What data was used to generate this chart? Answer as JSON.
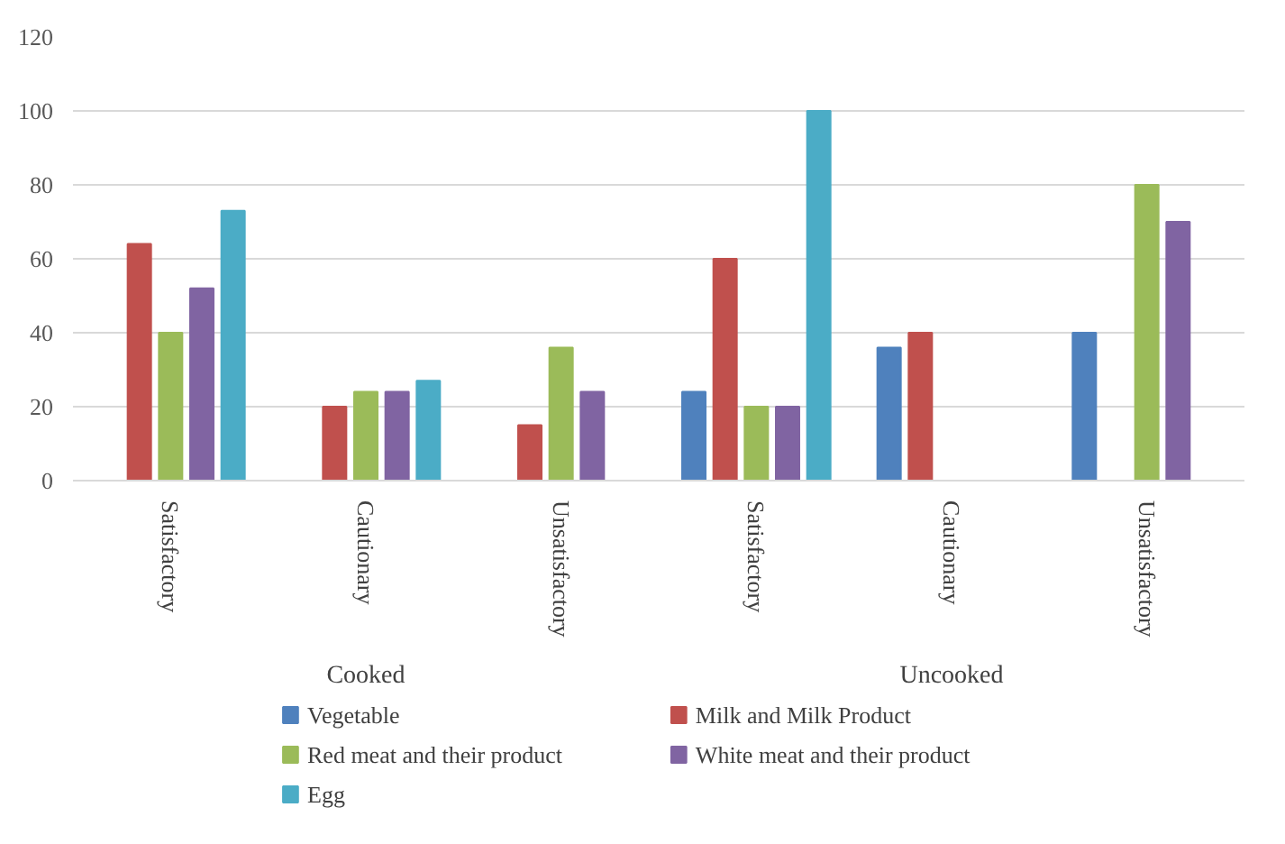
{
  "chart_data": {
    "type": "bar",
    "categories": [
      "Satisfactory",
      "Cautionary",
      "Unsatisfactory",
      "Satisfactory",
      "Cautionary",
      "Unsatisfactory"
    ],
    "annotations": [
      "Cooked",
      "Uncooked"
    ],
    "series": [
      {
        "name": "Vegetable",
        "color": "#4f81bd",
        "values": [
          null,
          null,
          null,
          24,
          36,
          40
        ]
      },
      {
        "name": "Milk and Milk Product",
        "color": "#c0504d",
        "values": [
          64,
          20,
          15,
          60,
          40,
          null
        ]
      },
      {
        "name": "Red meat and their product",
        "color": "#9bbb59",
        "values": [
          40,
          24,
          36,
          20,
          null,
          80
        ]
      },
      {
        "name": "White meat and their product",
        "color": "#8064a2",
        "values": [
          52,
          24,
          24,
          20,
          null,
          70
        ]
      },
      {
        "name": "Egg",
        "color": "#4bacc6",
        "values": [
          73,
          27,
          null,
          100,
          null,
          null
        ]
      }
    ],
    "ylim": [
      0,
      120
    ],
    "yticks": [
      0,
      20,
      40,
      60,
      80,
      100,
      120
    ],
    "grid": "y",
    "legend": "bottom"
  }
}
